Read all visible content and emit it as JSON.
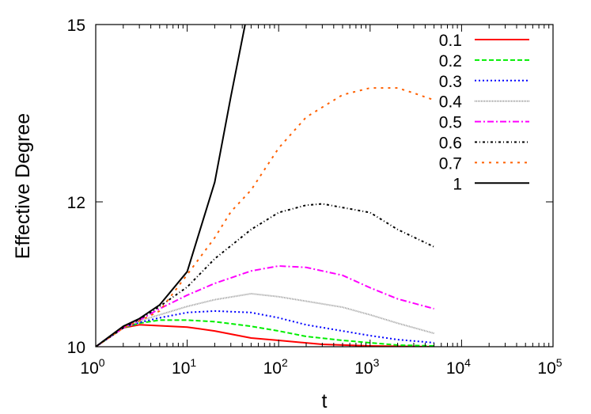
{
  "chart_data": {
    "type": "line",
    "title": "",
    "xlabel": "t",
    "ylabel": "Effective Degree",
    "x_scale": "log",
    "y_scale": "log",
    "xlim": [
      1,
      100000
    ],
    "ylim": [
      10,
      15
    ],
    "x_ticks": [
      1,
      10,
      100,
      1000,
      10000,
      100000
    ],
    "x_tick_labels": [
      "10^0",
      "10^1",
      "10^2",
      "10^3",
      "10^4",
      "10^5"
    ],
    "y_ticks": [
      10,
      12,
      15
    ],
    "y_tick_labels": [
      "10",
      "12",
      "15"
    ],
    "grid": false,
    "legend_position": "top-right",
    "series": [
      {
        "name": "0.1",
        "color": "#ff0000",
        "style": "solid",
        "x": [
          1,
          2,
          3,
          10,
          20,
          50,
          100,
          300,
          1000,
          5000
        ],
        "y": [
          10,
          10.24,
          10.28,
          10.25,
          10.2,
          10.11,
          10.08,
          10.03,
          10.01,
          10.0
        ]
      },
      {
        "name": "0.2",
        "color": "#00ee00",
        "style": "dashed",
        "x": [
          1,
          2,
          3,
          5,
          10,
          20,
          50,
          100,
          200,
          500,
          1000,
          2000,
          5000
        ],
        "y": [
          10,
          10.24,
          10.3,
          10.34,
          10.34,
          10.32,
          10.26,
          10.2,
          10.13,
          10.08,
          10.05,
          10.02,
          10.01
        ]
      },
      {
        "name": "0.3",
        "color": "#0000ff",
        "style": "dotted",
        "x": [
          1,
          2,
          3,
          5,
          10,
          20,
          50,
          100,
          200,
          500,
          1000,
          2000,
          5000
        ],
        "y": [
          10,
          10.24,
          10.31,
          10.37,
          10.44,
          10.46,
          10.44,
          10.37,
          10.28,
          10.2,
          10.14,
          10.09,
          10.05
        ]
      },
      {
        "name": "0.4",
        "color": "#999999",
        "style": "fine-dotted",
        "x": [
          1,
          2,
          3,
          5,
          10,
          20,
          50,
          100,
          200,
          500,
          1000,
          2000,
          5000
        ],
        "y": [
          10,
          10.24,
          10.33,
          10.41,
          10.52,
          10.61,
          10.69,
          10.65,
          10.59,
          10.51,
          10.41,
          10.3,
          10.17
        ]
      },
      {
        "name": "0.5",
        "color": "#ff00ff",
        "style": "dash-dot",
        "x": [
          1,
          2,
          3,
          5,
          10,
          20,
          50,
          100,
          200,
          500,
          1000,
          2000,
          5000
        ],
        "y": [
          10,
          10.24,
          10.34,
          10.49,
          10.67,
          10.83,
          11.0,
          11.07,
          11.05,
          10.94,
          10.77,
          10.62,
          10.49
        ]
      },
      {
        "name": "0.6",
        "color": "#000000",
        "style": "dash-dot-dot",
        "x": [
          1,
          2,
          3,
          5,
          10,
          20,
          50,
          100,
          200,
          300,
          1000,
          2000,
          5000
        ],
        "y": [
          10,
          10.24,
          10.35,
          10.52,
          10.78,
          11.17,
          11.59,
          11.84,
          11.95,
          11.97,
          11.84,
          11.59,
          11.34
        ]
      },
      {
        "name": "0.7",
        "color": "#ff6000",
        "style": "sparse-dotted",
        "x": [
          1,
          2,
          3,
          5,
          10,
          20,
          30,
          50,
          100,
          200,
          500,
          1000,
          2000,
          3000,
          5000
        ],
        "y": [
          10,
          10.24,
          10.33,
          10.46,
          10.95,
          11.47,
          11.85,
          12.18,
          12.84,
          13.35,
          13.73,
          13.85,
          13.85,
          13.76,
          13.64
        ]
      },
      {
        "name": "1",
        "color": "#000000",
        "style": "solid",
        "x": [
          1,
          2,
          3,
          5,
          10,
          20,
          30,
          43
        ],
        "y": [
          10,
          10.26,
          10.36,
          10.54,
          10.99,
          12.3,
          13.7,
          15
        ]
      }
    ]
  }
}
